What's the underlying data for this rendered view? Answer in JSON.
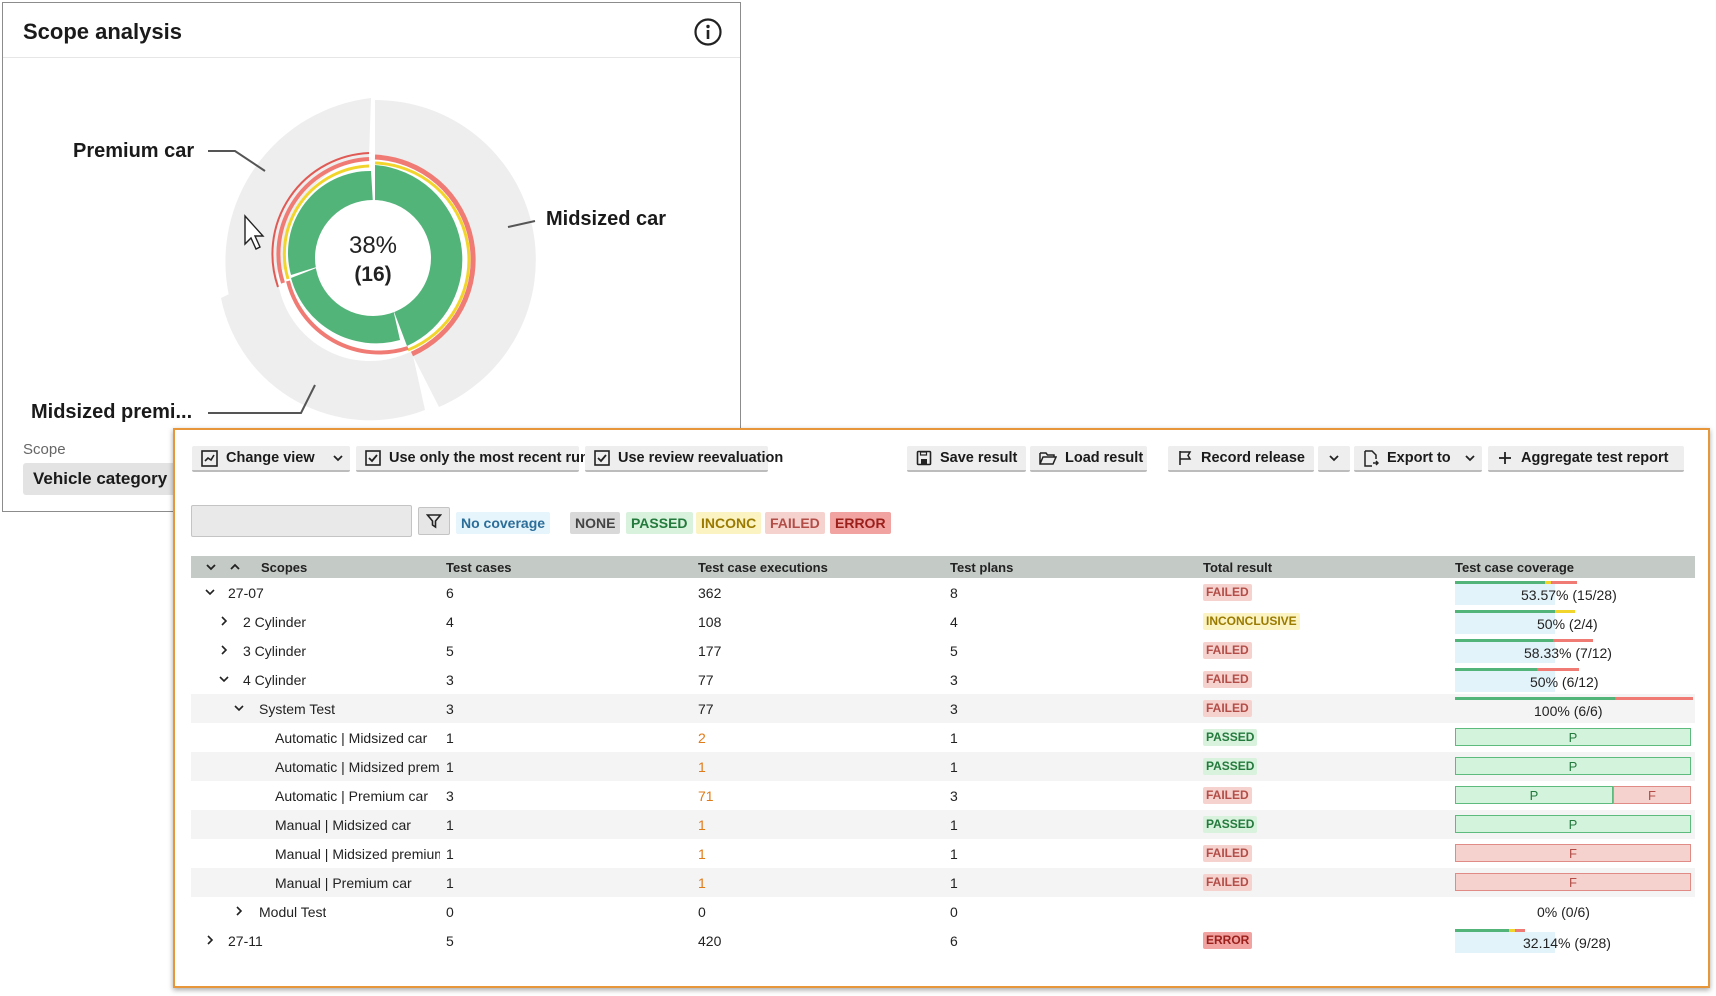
{
  "scope_panel": {
    "title": "Scope analysis",
    "center_percent": "38%",
    "center_count": "(16)",
    "segments": [
      "Premium car",
      "Midsized car",
      "Midsized premi..."
    ],
    "scope_label": "Scope",
    "scope_value": "Vehicle category"
  },
  "toolbar": {
    "change_view": "Change view",
    "recent_runs": "Use only the most recent runs",
    "review_reeval": "Use review reevaluation",
    "save_result": "Save result",
    "load_result": "Load result",
    "record_release": "Record release",
    "export_to": "Export to",
    "aggregate": "Aggregate test report"
  },
  "filters": {
    "no_coverage": "No coverage",
    "none": "NONE",
    "passed": "PASSED",
    "inconc": "INCONC",
    "failed": "FAILED",
    "error": "ERROR"
  },
  "colors": {
    "passed": "#53b47a",
    "failed": "#ef7b74",
    "inconclusive": "#f2d52c",
    "accent_border": "#e8963a"
  },
  "table": {
    "headers": [
      "Scopes",
      "Test cases",
      "Test case executions",
      "Test plans",
      "Total result",
      "Test case coverage"
    ],
    "rows": [
      {
        "scope": "27-07",
        "cases": "6",
        "executions": "362",
        "plans": "8",
        "result": "FAILED",
        "coverage": "53.57% (15/28)"
      },
      {
        "scope": "2 Cylinder",
        "cases": "4",
        "executions": "108",
        "plans": "4",
        "result": "INCONCLUSIVE",
        "coverage": "50% (2/4)"
      },
      {
        "scope": "3 Cylinder",
        "cases": "5",
        "executions": "177",
        "plans": "5",
        "result": "FAILED",
        "coverage": "58.33% (7/12)"
      },
      {
        "scope": "4 Cylinder",
        "cases": "3",
        "executions": "77",
        "plans": "3",
        "result": "FAILED",
        "coverage": "50% (6/12)"
      },
      {
        "scope": "System Test",
        "cases": "3",
        "executions": "77",
        "plans": "3",
        "result": "FAILED",
        "coverage": "100% (6/6)"
      },
      {
        "scope": "Automatic | Midsized car",
        "cases": "1",
        "executions": "2",
        "plans": "1",
        "result": "PASSED",
        "coverage": "P"
      },
      {
        "scope": "Automatic | Midsized premium car",
        "cases": "1",
        "executions": "1",
        "plans": "1",
        "result": "PASSED",
        "coverage": "P"
      },
      {
        "scope": "Automatic | Premium car",
        "cases": "3",
        "executions": "71",
        "plans": "3",
        "result": "FAILED",
        "coverage": "P",
        "coverage2": "F"
      },
      {
        "scope": "Manual | Midsized car",
        "cases": "1",
        "executions": "1",
        "plans": "1",
        "result": "PASSED",
        "coverage": "P"
      },
      {
        "scope": "Manual | Midsized premium car",
        "cases": "1",
        "executions": "1",
        "plans": "1",
        "result": "FAILED",
        "coverage": "F"
      },
      {
        "scope": "Manual | Premium car",
        "cases": "1",
        "executions": "1",
        "plans": "1",
        "result": "FAILED",
        "coverage": "F"
      },
      {
        "scope": "Modul Test",
        "cases": "0",
        "executions": "0",
        "plans": "0",
        "result": "",
        "coverage": "0% (0/6)"
      },
      {
        "scope": "27-11",
        "cases": "5",
        "executions": "420",
        "plans": "6",
        "result": "ERROR",
        "coverage": "32.14% (9/28)"
      }
    ]
  }
}
